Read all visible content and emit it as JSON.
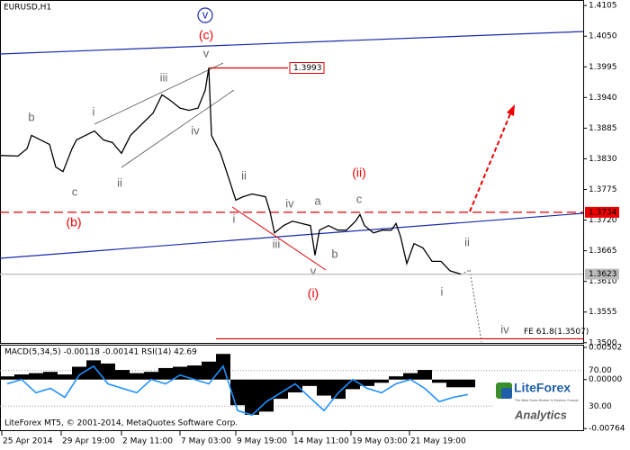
{
  "chart_data": [
    {
      "type": "line",
      "title": "EURUSD,H1",
      "x": [
        0,
        20,
        30,
        35,
        45,
        55,
        62,
        70,
        80,
        85,
        95,
        105,
        115,
        125,
        135,
        145,
        155,
        170,
        180,
        190,
        200,
        210,
        220,
        228,
        232,
        235,
        245,
        255,
        262,
        270,
        280,
        295,
        300,
        305,
        315,
        325,
        335,
        345,
        350,
        355,
        365,
        375,
        385,
        395,
        400,
        405,
        415,
        425,
        435,
        440,
        445,
        452,
        460,
        470,
        480,
        490,
        500,
        512
      ],
      "series": [
        {
          "name": "EURUSD",
          "color": "#000000",
          "values": [
            1.3836,
            1.3835,
            1.3848,
            1.3872,
            1.3864,
            1.3856,
            1.3815,
            1.3807,
            1.3848,
            1.3864,
            1.3872,
            1.388,
            1.3864,
            1.3859,
            1.384,
            1.3872,
            1.3888,
            1.3912,
            1.3945,
            1.3934,
            1.3921,
            1.3917,
            1.3921,
            1.3953,
            1.3993,
            1.3872,
            1.384,
            1.3791,
            1.3756,
            1.3762,
            1.3767,
            1.3762,
            1.3735,
            1.3697,
            1.371,
            1.3718,
            1.3714,
            1.371,
            1.3657,
            1.3702,
            1.371,
            1.3702,
            1.3702,
            1.3718,
            1.373,
            1.371,
            1.3697,
            1.3702,
            1.3702,
            1.3714,
            1.3691,
            1.3642,
            1.3678,
            1.367,
            1.3646,
            1.3646,
            1.3629,
            1.3623
          ]
        }
      ],
      "xlim": [
        0,
        648
      ],
      "xticks": [
        {
          "value": 2,
          "label": "25 Apr 2014"
        },
        {
          "value": 68,
          "label": "29 Apr 19:00"
        },
        {
          "value": 135,
          "label": "2 May 11:00"
        },
        {
          "value": 200,
          "label": "7 May 03:00"
        },
        {
          "value": 262,
          "label": "9 May 19:00"
        },
        {
          "value": 325,
          "label": "14 May 11:00"
        },
        {
          "value": 390,
          "label": "19 May 03:00"
        },
        {
          "value": 455,
          "label": "21 May 19:00"
        }
      ],
      "ylim": [
        1.3498,
        1.4115
      ],
      "yticks": [
        1.4105,
        {
          "value": 1.405,
          "label": "1.4050"
        },
        1.3995,
        {
          "value": 1.394,
          "label": "1.3940"
        },
        1.3885,
        {
          "value": 1.383,
          "label": "1.3830"
        },
        1.3775,
        {
          "value": 1.372,
          "label": "1.3720"
        },
        1.3665,
        {
          "value": 1.361,
          "label": "1.3610"
        },
        1.3555,
        {
          "value": 1.35,
          "label": "1.3500"
        }
      ],
      "levels": [
        1.3993,
        1.3734,
        1.3623,
        {
          "value": 1.3507,
          "label": "FE 61.8(1.3507)"
        }
      ],
      "annotations": [
        "b",
        "c",
        "(b)",
        "i",
        "ii",
        "iii",
        "(c)",
        "v",
        "v",
        "iv",
        "ii",
        "i",
        "iii",
        "iv",
        "a",
        "c",
        "(ii)",
        "v",
        "(i)",
        "b",
        "ii",
        "i",
        "iv"
      ],
      "footer": "LiteForex MT5, © 2001-2014, MetaQuotes Software Corp.",
      "logo": {
        "name": "LiteForex",
        "tagline": "The Best Forex Broker in Eastern Europe",
        "subtitle": "Analytics"
      }
    },
    {
      "type": "bar",
      "title": "MACD(5,34,5) -0.00118 -0.00141 RSI(14) 42.69",
      "x": [
        0,
        16,
        32,
        48,
        64,
        80,
        96,
        112,
        128,
        144,
        160,
        176,
        192,
        208,
        224,
        240,
        256,
        272,
        288,
        304,
        320,
        336,
        352,
        368,
        384,
        400,
        416,
        432,
        448,
        464,
        480,
        496,
        512
      ],
      "series": [
        {
          "name": "MACD",
          "color": "#000000",
          "values": [
            0.0005,
            0.0008,
            0.001,
            0.0012,
            0.0008,
            0.002,
            0.003,
            0.0025,
            0.0015,
            0.001,
            0.0012,
            0.0018,
            0.002,
            0.0022,
            0.0028,
            0.004,
            -0.004,
            -0.0055,
            -0.005,
            -0.003,
            -0.002,
            -0.001,
            -0.0025,
            -0.003,
            -0.0015,
            -0.001,
            -0.0005,
            0.0005,
            0.001,
            0.0015,
            -0.0005,
            -0.0012,
            -0.0012
          ]
        },
        {
          "name": "RSI",
          "color": "#1e90ff",
          "axis": "y2",
          "values": [
            55,
            60,
            45,
            50,
            40,
            65,
            75,
            55,
            50,
            45,
            60,
            55,
            65,
            60,
            55,
            75,
            25,
            20,
            35,
            45,
            55,
            40,
            25,
            45,
            60,
            50,
            45,
            55,
            60,
            50,
            35,
            40,
            43
          ]
        }
      ],
      "xlim": [
        0,
        648
      ],
      "ylim": [
        -0.0079,
        0.0053
      ],
      "yticks": [
        0.00502,
        {
          "value": 0,
          "label": "0.00000"
        },
        -0.00764
      ],
      "y2lim": [
        3,
        98
      ],
      "y2ticks": [
        {
          "value": 70,
          "label": "70.00"
        },
        {
          "value": 30,
          "label": "30.00"
        }
      ]
    }
  ]
}
